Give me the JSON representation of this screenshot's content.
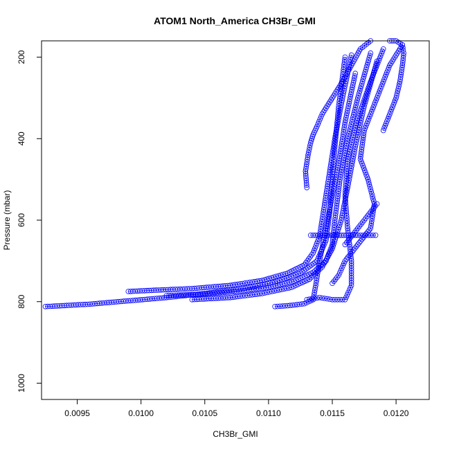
{
  "chart_data": {
    "type": "scatter",
    "title": "ATOM1 North_America CH3Br_GMI",
    "xlabel": "CH3Br_GMI",
    "ylabel": "Pressure (mbar)",
    "xlim": [
      0.00922,
      0.01226
    ],
    "ylim": [
      1040,
      160
    ],
    "y_reversed": true,
    "grid": false,
    "x_ticks": [
      0.0095,
      0.01,
      0.0105,
      0.011,
      0.0115,
      0.012
    ],
    "x_tick_labels": [
      "0.0095",
      "0.0100",
      "0.0105",
      "0.0110",
      "0.0115",
      "0.0120"
    ],
    "y_ticks": [
      200,
      400,
      600,
      800,
      1000
    ],
    "y_tick_labels": [
      "200",
      "400",
      "600",
      "800",
      "1000"
    ],
    "marker": "open-circle",
    "color": "#0000ff",
    "series": [
      {
        "x": [
          0.00925,
          0.00938,
          0.0096,
          0.0099,
          0.0102,
          0.0105,
          0.0108,
          0.01105,
          0.01125,
          0.01138,
          0.01145,
          0.01148,
          0.0115,
          0.01152,
          0.01155,
          0.0116
        ],
        "y": [
          812,
          810,
          806,
          798,
          790,
          780,
          768,
          752,
          730,
          700,
          650,
          580,
          500,
          420,
          320,
          200
        ]
      },
      {
        "x": [
          0.0099,
          0.0101,
          0.0104,
          0.0107,
          0.01095,
          0.01115,
          0.01128,
          0.01135,
          0.0114,
          0.01143,
          0.01147,
          0.01152,
          0.01158,
          0.01165
        ],
        "y": [
          775,
          772,
          768,
          760,
          748,
          730,
          710,
          680,
          640,
          580,
          500,
          400,
          300,
          195
        ]
      },
      {
        "x": [
          0.0102,
          0.01045,
          0.01075,
          0.011,
          0.0112,
          0.01135,
          0.01145,
          0.0115,
          0.01152,
          0.01156,
          0.01162,
          0.0117,
          0.0118
        ],
        "y": [
          785,
          782,
          775,
          765,
          750,
          728,
          700,
          660,
          600,
          500,
          400,
          300,
          190
        ]
      },
      {
        "x": [
          0.0104,
          0.0107,
          0.01095,
          0.01118,
          0.01132,
          0.01142,
          0.0115,
          0.01157,
          0.01162,
          0.01168,
          0.01175,
          0.01185
        ],
        "y": [
          795,
          790,
          780,
          765,
          745,
          715,
          670,
          600,
          520,
          420,
          320,
          210
        ]
      },
      {
        "x": [
          0.01105,
          0.01115,
          0.01128,
          0.01135,
          0.01137,
          0.0114,
          0.01145,
          0.0115,
          0.01155,
          0.0116,
          0.01168
        ],
        "y": [
          812,
          810,
          805,
          795,
          760,
          700,
          620,
          540,
          460,
          360,
          240
        ]
      },
      {
        "x": [
          0.0113,
          0.0114,
          0.0115,
          0.0116,
          0.01165,
          0.01165,
          0.01162,
          0.0116,
          0.01162,
          0.0117,
          0.0118,
          0.0119
        ],
        "y": [
          795,
          790,
          795,
          795,
          760,
          700,
          620,
          540,
          450,
          350,
          260,
          180
        ]
      },
      {
        "x": [
          0.0115,
          0.01155,
          0.0116,
          0.0117,
          0.0118,
          0.01183,
          0.01178,
          0.01172,
          0.01175,
          0.01185,
          0.01195,
          0.01205
        ],
        "y": [
          755,
          735,
          700,
          660,
          620,
          560,
          500,
          450,
          380,
          300,
          220,
          170
        ]
      },
      {
        "x": [
          0.0113,
          0.01129,
          0.01131,
          0.01133,
          0.01135,
          0.01138,
          0.01142,
          0.01148,
          0.01152,
          0.01158,
          0.01165,
          0.01172,
          0.0118
        ],
        "y": [
          520,
          480,
          440,
          410,
          390,
          370,
          340,
          310,
          290,
          260,
          220,
          180,
          160
        ]
      },
      {
        "x": [
          0.0119,
          0.01195,
          0.012,
          0.01203,
          0.01205,
          0.01206,
          0.01205,
          0.012,
          0.01195
        ],
        "y": [
          380,
          340,
          300,
          260,
          220,
          190,
          170,
          160,
          160
        ]
      },
      {
        "x": [
          0.0116,
          0.01165,
          0.0117,
          0.01175,
          0.0118,
          0.01185
        ],
        "y": [
          660,
          640,
          620,
          600,
          580,
          560
        ]
      },
      {
        "x": [
          0.01133,
          0.0115,
          0.0117,
          0.01184
        ],
        "y": [
          637,
          637,
          637,
          637
        ]
      }
    ]
  }
}
